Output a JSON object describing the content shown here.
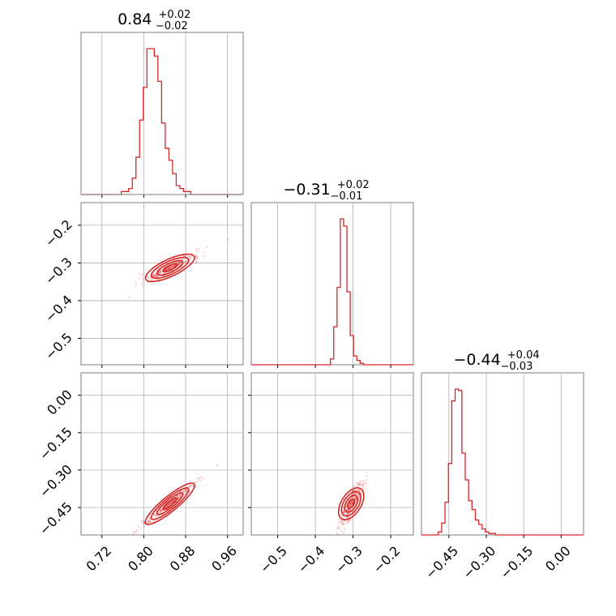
{
  "chart_data": {
    "type": "corner",
    "color": "#d62728",
    "titles": [
      {
        "value": "0.84",
        "plus": "+0.02",
        "minus": "−0.02"
      },
      {
        "value": "−0.31",
        "plus": "+0.02",
        "minus": "−0.01"
      },
      {
        "value": "−0.44",
        "plus": "+0.04",
        "minus": "−0.03"
      }
    ],
    "params": [
      {
        "range": [
          0.68,
          0.99
        ],
        "ticks": [
          0.72,
          0.8,
          0.88,
          0.96
        ],
        "tick_labels": [
          "0.72",
          "0.80",
          "0.88",
          "0.96"
        ]
      },
      {
        "range": [
          -0.57,
          -0.14
        ],
        "ticks": [
          -0.5,
          -0.4,
          -0.3,
          -0.2
        ],
        "tick_labels": [
          "−0.5",
          "−0.4",
          "−0.3",
          "−0.2"
        ]
      },
      {
        "range": [
          -0.56,
          0.09
        ],
        "ticks": [
          -0.45,
          -0.3,
          -0.15,
          0.0
        ],
        "tick_labels": [
          "−0.45",
          "−0.30",
          "−0.15",
          "0.00"
        ]
      }
    ],
    "histograms": [
      {
        "bin_start": 0.68,
        "bin_width": 0.007,
        "counts": [
          0,
          0,
          0,
          0,
          0,
          0,
          0,
          0,
          0,
          0,
          0,
          2,
          2,
          4,
          11,
          25,
          50,
          72,
          98,
          98,
          93,
          76,
          48,
          31,
          23,
          14,
          6,
          4,
          2,
          2,
          0,
          0,
          0,
          0,
          0,
          0,
          0,
          0,
          0,
          0,
          0,
          0,
          0,
          0
        ]
      },
      {
        "bin_start": -0.57,
        "bin_width": 0.00875,
        "counts": [
          0,
          0,
          0,
          0,
          0,
          0,
          0,
          0,
          0,
          0,
          0,
          0,
          0,
          0,
          0,
          0,
          0,
          0,
          0,
          0,
          0,
          0,
          0,
          0,
          4,
          26,
          53,
          100,
          95,
          50,
          20,
          6,
          3,
          1,
          0,
          0,
          0,
          0,
          0,
          0,
          0,
          0,
          0,
          0,
          0,
          0,
          0,
          0,
          0
        ]
      },
      {
        "bin_start": -0.56,
        "bin_width": 0.0135,
        "counts": [
          0,
          0,
          0,
          0,
          0,
          2,
          8,
          22,
          48,
          90,
          98,
          97,
          55,
          37,
          23,
          17,
          10,
          7,
          4,
          2,
          1,
          1,
          0,
          0,
          0,
          0,
          0,
          0,
          0,
          0,
          0,
          0,
          0,
          0,
          0,
          0,
          0,
          0,
          0,
          0,
          0,
          0,
          0,
          0,
          0,
          0,
          0,
          0
        ]
      }
    ],
    "pairs": [
      {
        "x_param": 0,
        "y_param": 1,
        "center": [
          0.85,
          -0.313
        ],
        "slope": 0.65,
        "spread_x": 0.022,
        "spread_perp": 0.006
      },
      {
        "x_param": 0,
        "y_param": 2,
        "center": [
          0.85,
          -0.435
        ],
        "slope": 1.72,
        "spread_x": 0.022,
        "spread_perp": 0.008
      },
      {
        "x_param": 1,
        "y_param": 2,
        "center": [
          -0.305,
          -0.435
        ],
        "slope": 2.4,
        "spread_x": 0.012,
        "spread_perp": 0.02
      }
    ],
    "grid": true
  }
}
